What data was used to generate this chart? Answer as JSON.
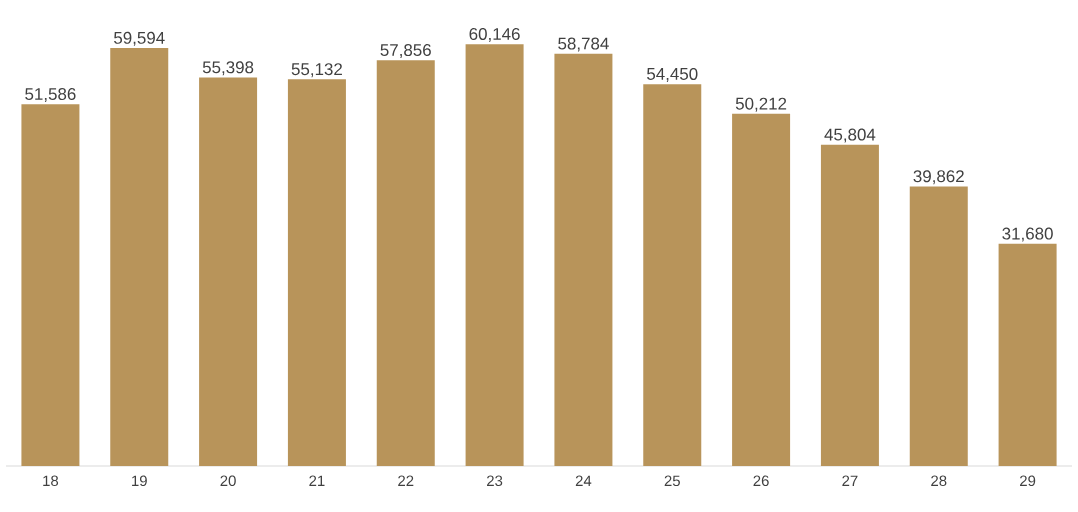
{
  "chart_data": {
    "type": "bar",
    "categories": [
      "18",
      "19",
      "20",
      "21",
      "22",
      "23",
      "24",
      "25",
      "26",
      "27",
      "28",
      "29"
    ],
    "values": [
      51586,
      59594,
      55398,
      55132,
      57856,
      60146,
      58784,
      54450,
      50212,
      45804,
      39862,
      31680
    ],
    "value_labels": [
      "51,586",
      "59,594",
      "55,398",
      "55,132",
      "57,856",
      "60,146",
      "58,784",
      "54,450",
      "50,212",
      "45,804",
      "39,862",
      "31,680"
    ],
    "color": "#b8945a",
    "tick_labels": "x"
  }
}
